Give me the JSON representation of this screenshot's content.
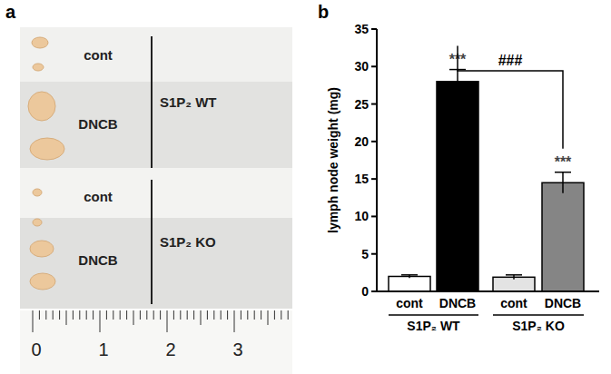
{
  "chart_data": {
    "type": "bar",
    "title": "b",
    "ylabel": "lymph node weight (mg)",
    "categories": [
      "cont",
      "DNCB",
      "cont",
      "DNCB"
    ],
    "values": [
      2.0,
      28.0,
      1.9,
      14.5
    ],
    "errors": [
      0.2,
      1.6,
      0.3,
      1.4
    ],
    "colors": [
      "#ffffff",
      "#000000",
      "#e3e3e3",
      "#858585"
    ],
    "groups": [
      {
        "label": "S1P₂ WT",
        "categories": [
          0,
          1
        ]
      },
      {
        "label": "S1P₂ KO",
        "categories": [
          2,
          3
        ]
      }
    ],
    "annotations": [
      {
        "category": 1,
        "text": "***"
      },
      {
        "category": 3,
        "text": "***"
      }
    ],
    "comparison": {
      "from": 1,
      "to": 3,
      "text": "###"
    },
    "ylim": [
      0,
      35
    ],
    "yticks": [
      0,
      5,
      10,
      15,
      20,
      25,
      30,
      35
    ],
    "grid": false
  },
  "photo": {
    "title": "a",
    "rows": [
      {
        "label": "cont"
      },
      {
        "label": "DNCB"
      },
      {
        "label": "cont"
      },
      {
        "label": "DNCB"
      }
    ],
    "groups": [
      {
        "label": "S1P₂ WT",
        "rows": [
          0,
          1
        ]
      },
      {
        "label": "S1P₂ KO",
        "rows": [
          2,
          3
        ]
      }
    ],
    "ruler_labels": [
      "0",
      "1",
      "2",
      "3"
    ]
  }
}
